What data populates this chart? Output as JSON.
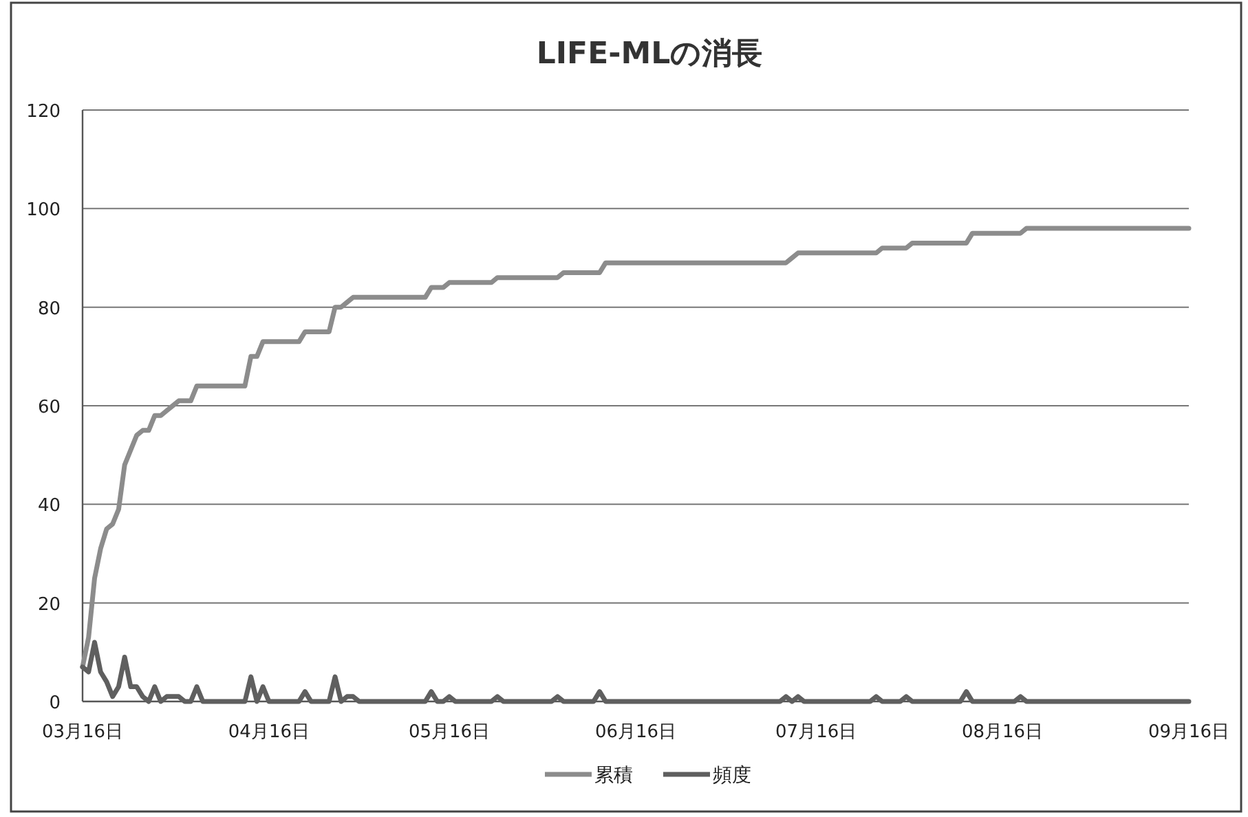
{
  "chart_data": {
    "type": "line",
    "title": "LIFE-MLの消長",
    "xlim": [
      "--03-16",
      "--09-16"
    ],
    "xticks": [
      {
        "value": "--03-16",
        "label": "03月16日"
      },
      {
        "value": "--04-16",
        "label": "04月16日"
      },
      {
        "value": "--05-16",
        "label": "05月16日"
      },
      {
        "value": "--06-16",
        "label": "06月16日"
      },
      {
        "value": "--07-16",
        "label": "07月16日"
      },
      {
        "value": "--08-16",
        "label": "08月16日"
      },
      {
        "value": "--09-16",
        "label": "09月16日"
      }
    ],
    "ylim": [
      0,
      120
    ],
    "yticks": [
      0,
      20,
      40,
      60,
      80,
      100,
      120
    ],
    "grid": "y",
    "legend": "bottom",
    "series": [
      {
        "name": "累積",
        "color": "#8c8c8c",
        "x": [
          "--03-16",
          "--03-17",
          "--03-18",
          "--03-19",
          "--03-20",
          "--03-21",
          "--03-22",
          "--03-23",
          "--03-24",
          "--03-25",
          "--03-26",
          "--03-27",
          "--03-28",
          "--03-29",
          "--03-30",
          "--03-31",
          "--04-01",
          "--04-03",
          "--04-04",
          "--04-12",
          "--04-13",
          "--04-14",
          "--04-15",
          "--04-21",
          "--04-22",
          "--04-26",
          "--04-27",
          "--04-28",
          "--04-29",
          "--04-30",
          "--05-12",
          "--05-13",
          "--05-15",
          "--05-16",
          "--05-23",
          "--05-24",
          "--06-03",
          "--06-04",
          "--06-10",
          "--06-11",
          "--07-11",
          "--07-12",
          "--07-13",
          "--07-26",
          "--07-27",
          "--07-31",
          "--08-01",
          "--08-10",
          "--08-11",
          "--08-19",
          "--08-20",
          "--09-16"
        ],
        "values": [
          7,
          13,
          25,
          31,
          35,
          36,
          39,
          48,
          51,
          54,
          55,
          55,
          58,
          58,
          59,
          60,
          61,
          61,
          64,
          64,
          70,
          70,
          73,
          73,
          75,
          75,
          80,
          80,
          81,
          82,
          82,
          84,
          84,
          85,
          85,
          86,
          86,
          87,
          87,
          89,
          89,
          90,
          91,
          91,
          92,
          92,
          93,
          93,
          95,
          95,
          96,
          96
        ]
      },
      {
        "name": "頻度",
        "color": "#5f5f5f",
        "x": [
          "--03-16",
          "--03-17",
          "--03-18",
          "--03-19",
          "--03-20",
          "--03-21",
          "--03-22",
          "--03-23",
          "--03-24",
          "--03-25",
          "--03-26",
          "--03-27",
          "--03-28",
          "--03-29",
          "--03-30",
          "--04-01",
          "--04-02",
          "--04-03",
          "--04-04",
          "--04-05",
          "--04-12",
          "--04-13",
          "--04-14",
          "--04-15",
          "--04-16",
          "--04-21",
          "--04-22",
          "--04-23",
          "--04-26",
          "--04-27",
          "--04-28",
          "--04-29",
          "--04-30",
          "--05-01",
          "--05-12",
          "--05-13",
          "--05-14",
          "--05-15",
          "--05-16",
          "--05-17",
          "--05-23",
          "--05-24",
          "--05-25",
          "--06-02",
          "--06-03",
          "--06-04",
          "--06-09",
          "--06-10",
          "--06-11",
          "--07-10",
          "--07-11",
          "--07-12",
          "--07-13",
          "--07-14",
          "--07-25",
          "--07-26",
          "--07-27",
          "--07-30",
          "--07-31",
          "--08-01",
          "--08-09",
          "--08-10",
          "--08-11",
          "--08-18",
          "--08-19",
          "--08-20",
          "--09-16"
        ],
        "values": [
          7,
          6,
          12,
          6,
          4,
          1,
          3,
          9,
          3,
          3,
          1,
          0,
          3,
          0,
          1,
          1,
          0,
          0,
          3,
          0,
          0,
          5,
          0,
          3,
          0,
          0,
          2,
          0,
          0,
          5,
          0,
          1,
          1,
          0,
          0,
          2,
          0,
          0,
          1,
          0,
          0,
          1,
          0,
          0,
          1,
          0,
          0,
          2,
          0,
          0,
          1,
          0,
          1,
          0,
          0,
          1,
          0,
          0,
          1,
          0,
          0,
          2,
          0,
          0,
          1,
          0,
          0
        ]
      }
    ]
  }
}
